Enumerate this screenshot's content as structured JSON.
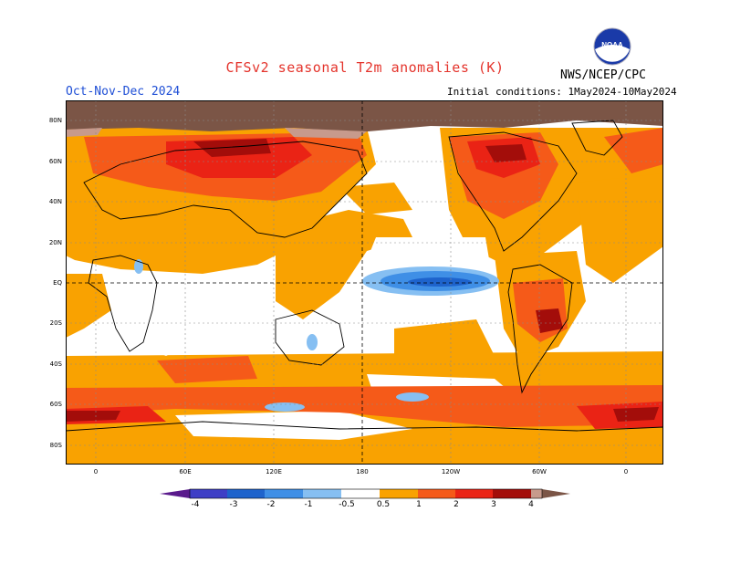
{
  "header": {
    "title": "CFSv2 seasonal T2m anomalies (K)",
    "season": "Oct-Nov-Dec 2024",
    "initial_conditions": "Initial conditions: 1May2024-10May2024",
    "agency": "NWS/NCEP/CPC",
    "logo_text": "NOAA"
  },
  "map": {
    "lat_labels": [
      "80N",
      "60N",
      "40N",
      "20N",
      "EQ",
      "20S",
      "40S",
      "60S",
      "80S"
    ],
    "lon_labels": [
      "0",
      "60E",
      "120E",
      "180",
      "120W",
      "60W",
      "0"
    ]
  },
  "colorbar": {
    "ticks": [
      "-4",
      "-3",
      "-2",
      "-1",
      "-0.5",
      "0.5",
      "1",
      "2",
      "3",
      "4"
    ],
    "colors": {
      "lt_-4": "#5a1a8c",
      "-4_-3": "#3e3fc6",
      "-3_-2": "#1e63cc",
      "-2_-1": "#3f8fe6",
      "-1_-0.5": "#86bff2",
      "-0.5_0.5": "#ffffff",
      "0.5_1": "#f9a201",
      "1_2": "#f55a19",
      "2_3": "#ea2315",
      "3_4": "#a30d0a",
      "4_5": "#c79a8c",
      "gt_5": "#7b5546"
    }
  }
}
